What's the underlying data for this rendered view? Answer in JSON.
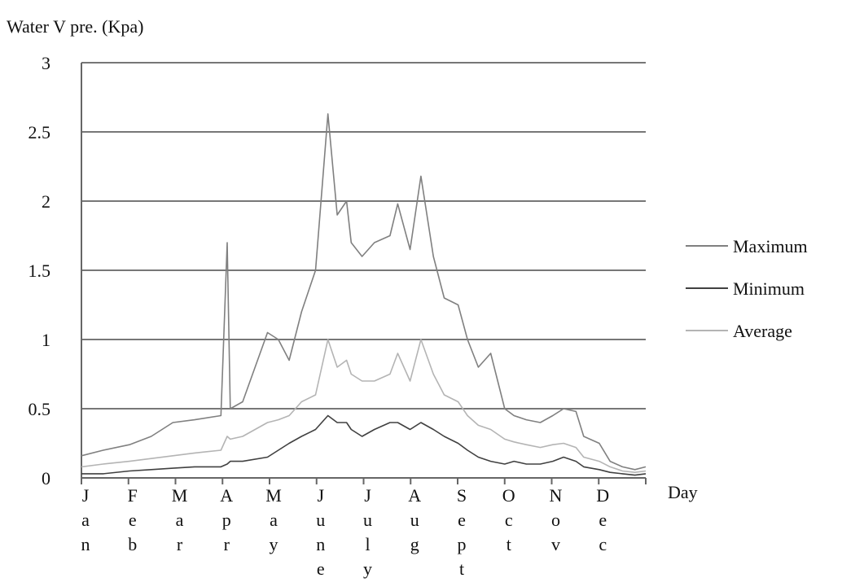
{
  "chart_data": {
    "type": "line",
    "ylabel": "Water V pre. (Kpa)",
    "xlabel": "Day",
    "ylim": [
      0,
      3
    ],
    "yticks": [
      0,
      0.5,
      1,
      1.5,
      2,
      2.5,
      3
    ],
    "grid": true,
    "legend_position": "right",
    "months": [
      {
        "letters": [
          "J",
          "a",
          "n"
        ]
      },
      {
        "letters": [
          "F",
          "e",
          "b"
        ]
      },
      {
        "letters": [
          "M",
          "a",
          "r"
        ]
      },
      {
        "letters": [
          "A",
          "p",
          "r"
        ]
      },
      {
        "letters": [
          "M",
          "a",
          "y"
        ]
      },
      {
        "letters": [
          "J",
          "u",
          "n",
          "e"
        ]
      },
      {
        "letters": [
          "J",
          "u",
          "l",
          "y"
        ]
      },
      {
        "letters": [
          "A",
          "u",
          "g"
        ]
      },
      {
        "letters": [
          "S",
          "e",
          "p",
          "t"
        ]
      },
      {
        "letters": [
          "O",
          "c",
          "t"
        ]
      },
      {
        "letters": [
          "N",
          "o",
          "v"
        ]
      },
      {
        "letters": [
          "D",
          "e",
          "c"
        ]
      }
    ],
    "x_days": [
      1,
      15,
      32,
      46,
      60,
      74,
      91,
      95,
      97,
      105,
      121,
      128,
      135,
      143,
      152,
      160,
      166,
      172,
      175,
      182,
      190,
      200,
      205,
      213,
      220,
      228,
      235,
      244,
      250,
      257,
      265,
      274,
      280,
      288,
      297,
      305,
      312,
      320,
      325,
      335,
      342,
      350,
      358,
      365
    ],
    "series": [
      {
        "name": "Maximum",
        "color": "#808080",
        "values": [
          0.16,
          0.2,
          0.24,
          0.3,
          0.4,
          0.42,
          0.45,
          1.7,
          0.5,
          0.55,
          1.05,
          1.0,
          0.85,
          1.2,
          1.5,
          2.63,
          1.9,
          2.0,
          1.7,
          1.6,
          1.7,
          1.75,
          1.98,
          1.65,
          2.18,
          1.6,
          1.3,
          1.25,
          1.0,
          0.8,
          0.9,
          0.5,
          0.45,
          0.42,
          0.4,
          0.45,
          0.5,
          0.48,
          0.3,
          0.25,
          0.12,
          0.08,
          0.06,
          0.08
        ]
      },
      {
        "name": "Minimum",
        "color": "#404040",
        "values": [
          0.03,
          0.03,
          0.05,
          0.06,
          0.07,
          0.08,
          0.08,
          0.1,
          0.12,
          0.12,
          0.15,
          0.2,
          0.25,
          0.3,
          0.35,
          0.45,
          0.4,
          0.4,
          0.35,
          0.3,
          0.35,
          0.4,
          0.4,
          0.35,
          0.4,
          0.35,
          0.3,
          0.25,
          0.2,
          0.15,
          0.12,
          0.1,
          0.12,
          0.1,
          0.1,
          0.12,
          0.15,
          0.12,
          0.08,
          0.06,
          0.04,
          0.03,
          0.02,
          0.03
        ]
      },
      {
        "name": "Average",
        "color": "#b4b4b4",
        "values": [
          0.08,
          0.1,
          0.12,
          0.14,
          0.16,
          0.18,
          0.2,
          0.3,
          0.28,
          0.3,
          0.4,
          0.42,
          0.45,
          0.55,
          0.6,
          1.0,
          0.8,
          0.85,
          0.75,
          0.7,
          0.7,
          0.75,
          0.9,
          0.7,
          1.0,
          0.75,
          0.6,
          0.55,
          0.45,
          0.38,
          0.35,
          0.28,
          0.26,
          0.24,
          0.22,
          0.24,
          0.25,
          0.22,
          0.15,
          0.12,
          0.08,
          0.05,
          0.04,
          0.05
        ]
      }
    ]
  }
}
